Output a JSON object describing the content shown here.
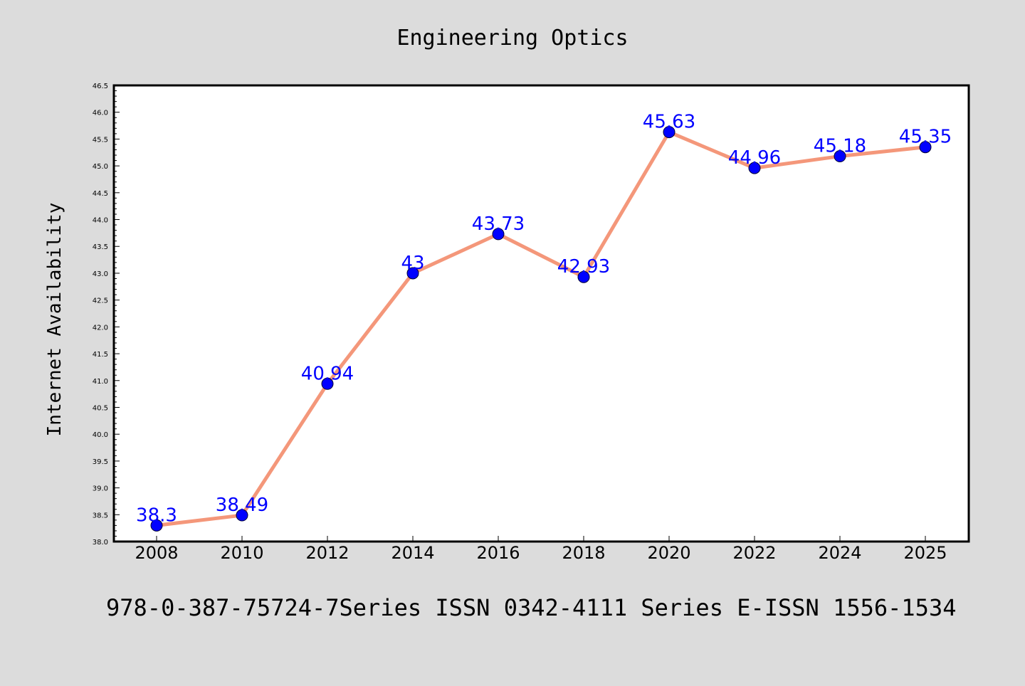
{
  "chart_data": {
    "type": "line",
    "title": "Engineering Optics",
    "xlabel": "",
    "ylabel": "Internet Availability",
    "categories": [
      "2008",
      "2010",
      "2012",
      "2014",
      "2016",
      "2018",
      "2020",
      "2022",
      "2024",
      "2025"
    ],
    "series": [
      {
        "values": [
          38.3,
          38.49,
          40.94,
          43,
          43.73,
          42.93,
          45.63,
          44.96,
          45.18,
          45.35
        ],
        "data_labels": [
          "38.3",
          "38.49",
          "40.94",
          "43",
          "43.73",
          "42.93",
          "45.63",
          "44.96",
          "45.18",
          "45.35"
        ],
        "line_color": "#f4977a",
        "marker_color": "#0000ff"
      }
    ],
    "ylim": [
      38.0,
      46.5
    ],
    "yticks": [
      "38.0",
      "38.5",
      "39.0",
      "39.5",
      "40.0",
      "40.5",
      "41.0",
      "41.5",
      "42.0",
      "42.5",
      "43.0",
      "43.5",
      "44.0",
      "44.5",
      "45.0",
      "45.5",
      "46.0",
      "46.5"
    ],
    "grid": false,
    "legend": "none",
    "label_color": "#0000ff"
  },
  "footer": {
    "text": "978-0-387-75724-7Series ISSN 0342-4111 Series E-ISSN 1556-1534"
  },
  "colors": {
    "background": "#dcdcdc",
    "plot_background": "#ffffff"
  }
}
